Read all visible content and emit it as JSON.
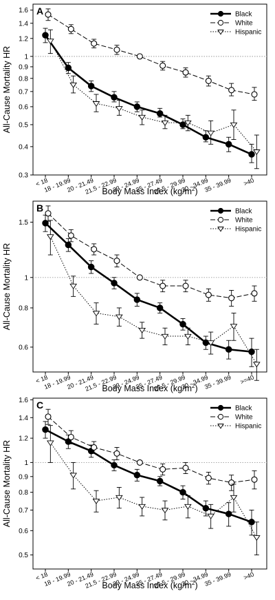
{
  "chart_data": [
    {
      "type": "line",
      "panel_label": "A",
      "ylabel": "All-Cause Mortality HR",
      "xlabel": "Body Mass Index (kg/m",
      "xlabel_sup": "2",
      "xlabel_close": ")",
      "yscale": "log",
      "ylim": [
        0.3,
        1.7
      ],
      "yticks": [
        0.3,
        0.4,
        0.5,
        0.6,
        0.7,
        0.8,
        0.9,
        1,
        1.2,
        1.4,
        1.6
      ],
      "ytick_labels": [
        "0.3",
        "0.4",
        "0.5",
        "0.6",
        "0.7",
        "0.8",
        "0.9",
        "1",
        "1.2",
        "1.4",
        "1.6"
      ],
      "reference_line": 1,
      "legend_position": "top-right",
      "categories": [
        "< 18",
        "18 - 19.99",
        "20 - 21.49",
        "21.5 - 22.99",
        "23 - 24.99",
        "25 - 27.49",
        "27.5 - 29.99",
        "30 - 34.99",
        "35 - 39.99",
        ">40"
      ],
      "category_labels": [
        "< 18",
        "18 - 19.99",
        "20 - 21.49",
        "21.5 - 22.99",
        "23 - 24.99",
        "25 - 27.49",
        "27.5 - 29.99",
        "30 - 34.99",
        "35 - 39.99",
        ">40"
      ],
      "series": [
        {
          "name": "Black",
          "style": "black",
          "x": [
            0,
            1,
            2,
            3,
            4,
            5,
            6,
            7,
            8,
            9
          ],
          "values": [
            1.24,
            0.89,
            0.74,
            0.66,
            0.6,
            0.56,
            0.5,
            0.44,
            0.41,
            0.37
          ],
          "lower": [
            1.15,
            0.84,
            0.7,
            0.63,
            0.57,
            0.54,
            0.48,
            0.42,
            0.38,
            0.34
          ],
          "upper": [
            1.33,
            0.94,
            0.78,
            0.7,
            0.63,
            0.59,
            0.53,
            0.47,
            0.44,
            0.41
          ]
        },
        {
          "name": "White",
          "style": "white",
          "x": [
            0.12,
            1.12,
            2.12,
            3.12,
            4.12,
            5.12,
            6.12,
            7.12,
            8.12,
            9.12
          ],
          "values": [
            1.53,
            1.32,
            1.14,
            1.07,
            1.0,
            0.91,
            0.85,
            0.78,
            0.71,
            0.68
          ],
          "lower": [
            1.44,
            1.26,
            1.09,
            1.02,
            1.0,
            0.87,
            0.81,
            0.74,
            0.67,
            0.64
          ],
          "upper": [
            1.62,
            1.38,
            1.19,
            1.12,
            1.0,
            0.95,
            0.89,
            0.82,
            0.76,
            0.73
          ]
        },
        {
          "name": "Hispanic",
          "style": "hispanic",
          "x": [
            0.22,
            1.22,
            2.22,
            3.22,
            4.22,
            5.22,
            6.22,
            7.22,
            8.22,
            9.22
          ],
          "values": [
            1.17,
            0.75,
            0.62,
            0.59,
            0.54,
            0.51,
            0.51,
            0.46,
            0.5,
            0.38
          ],
          "lower": [
            1.03,
            0.69,
            0.57,
            0.55,
            0.5,
            0.48,
            0.47,
            0.41,
            0.43,
            0.32
          ],
          "upper": [
            1.31,
            0.82,
            0.68,
            0.64,
            0.58,
            0.55,
            0.55,
            0.52,
            0.58,
            0.45
          ]
        }
      ]
    },
    {
      "type": "line",
      "panel_label": "B",
      "ylabel": "All-Cause Mortality HR",
      "xlabel": "Body Mass Index (kg/m",
      "xlabel_sup": "2",
      "xlabel_close": ")",
      "yscale": "log",
      "ylim": [
        0.5,
        1.75
      ],
      "yticks": [
        0.6,
        0.8,
        1,
        1.5
      ],
      "ytick_labels": [
        "0.6",
        "0.8",
        "1",
        "1.5"
      ],
      "reference_line": 1,
      "legend_position": "top-right",
      "categories": [
        "< 18",
        "18 - 19.99",
        "20 - 21.49",
        "21.5 - 22.99",
        "23 - 24.99",
        "25 - 27.49",
        "27.5 - 29.99",
        "30 - 34.99",
        "35 - 39.99",
        ">=40"
      ],
      "category_labels": [
        "< 18",
        "18 - 19.99",
        "20 - 21.49",
        "21.5 - 22.99",
        "23 - 24.99",
        "25 - 27.49",
        "27.5 - 29.99",
        "30 - 34.99",
        "35 - 39.99",
        ">=40"
      ],
      "series": [
        {
          "name": "Black",
          "style": "black",
          "x": [
            0,
            1,
            2,
            3,
            4,
            5,
            6,
            7,
            8,
            9
          ],
          "values": [
            1.49,
            1.27,
            1.08,
            0.96,
            0.85,
            0.8,
            0.71,
            0.62,
            0.59,
            0.58
          ],
          "lower": [
            1.4,
            1.21,
            1.03,
            0.92,
            0.81,
            0.77,
            0.68,
            0.59,
            0.55,
            0.52
          ],
          "upper": [
            1.58,
            1.33,
            1.13,
            1.0,
            0.89,
            0.83,
            0.74,
            0.65,
            0.63,
            0.64
          ]
        },
        {
          "name": "White",
          "style": "white",
          "x": [
            0.12,
            1.12,
            2.12,
            3.12,
            4.12,
            5.12,
            6.12,
            7.12,
            8.12,
            9.12
          ],
          "values": [
            1.6,
            1.36,
            1.23,
            1.13,
            1.0,
            0.94,
            0.94,
            0.88,
            0.86,
            0.89
          ],
          "lower": [
            1.51,
            1.3,
            1.18,
            1.08,
            1.0,
            0.9,
            0.9,
            0.84,
            0.81,
            0.84
          ],
          "upper": [
            1.69,
            1.42,
            1.28,
            1.18,
            1.0,
            0.98,
            0.98,
            0.92,
            0.91,
            0.94
          ]
        },
        {
          "name": "Hispanic",
          "style": "hispanic",
          "x": [
            0.22,
            1.22,
            2.22,
            3.22,
            4.22,
            5.22,
            6.22,
            7.22,
            8.22,
            9.22
          ],
          "values": [
            1.35,
            0.94,
            0.77,
            0.75,
            0.68,
            0.65,
            0.65,
            0.62,
            0.7,
            0.53
          ],
          "lower": [
            1.18,
            0.87,
            0.71,
            0.7,
            0.64,
            0.61,
            0.61,
            0.57,
            0.63,
            0.47
          ],
          "upper": [
            1.52,
            1.01,
            0.83,
            0.8,
            0.72,
            0.69,
            0.69,
            0.67,
            0.77,
            0.59
          ]
        }
      ]
    },
    {
      "type": "line",
      "panel_label": "C",
      "ylabel": "All-Cause Mortality HR",
      "xlabel": "Body Mass Index (kg/m",
      "xlabel_sup": "2",
      "xlabel_close": ")",
      "yscale": "log",
      "ylim": [
        0.45,
        1.62
      ],
      "yticks": [
        0.5,
        0.6,
        0.7,
        0.8,
        0.9,
        1,
        1.2,
        1.4,
        1.6
      ],
      "ytick_labels": [
        "0.5",
        "0.6",
        "0.7",
        "0.8",
        "0.9",
        "1",
        "1.2",
        "1.4",
        "1.6"
      ],
      "reference_line": 1,
      "legend_position": "top-right",
      "categories": [
        "< 18",
        "18 - 19.99",
        "20 - 21.49",
        "21.5 - 22.99",
        "23 - 24.99",
        "25 - 27.49",
        "27.5 - 29.99",
        "30 - 34.99",
        "35 - 39.99",
        ">40"
      ],
      "category_labels": [
        "< 18",
        "18 - 19.99",
        "20 - 21.49",
        "21.5 - 22.99",
        "23 - 24.99",
        "25 - 27.49",
        "27.5 - 29.99",
        "30 - 34.99",
        "35 - 39.99",
        ">40"
      ],
      "series": [
        {
          "name": "Black",
          "style": "black",
          "x": [
            0,
            1,
            2,
            3,
            4,
            5,
            6,
            7,
            8,
            9
          ],
          "values": [
            1.28,
            1.17,
            1.09,
            0.98,
            0.91,
            0.87,
            0.8,
            0.71,
            0.68,
            0.64
          ],
          "lower": [
            1.2,
            1.11,
            1.04,
            0.94,
            0.87,
            0.84,
            0.76,
            0.67,
            0.62,
            0.58
          ],
          "upper": [
            1.36,
            1.23,
            1.14,
            1.02,
            0.95,
            0.9,
            0.84,
            0.75,
            0.74,
            0.7
          ]
        },
        {
          "name": "White",
          "style": "white",
          "x": [
            0.12,
            1.12,
            2.12,
            3.12,
            4.12,
            5.12,
            6.12,
            7.12,
            8.12,
            9.12
          ],
          "values": [
            1.41,
            1.21,
            1.12,
            1.07,
            1.0,
            0.95,
            0.96,
            0.89,
            0.86,
            0.88
          ],
          "lower": [
            1.33,
            1.15,
            1.07,
            1.02,
            1.0,
            0.91,
            0.92,
            0.85,
            0.81,
            0.82
          ],
          "upper": [
            1.49,
            1.27,
            1.17,
            1.12,
            1.0,
            0.99,
            1.0,
            0.93,
            0.91,
            0.94
          ]
        },
        {
          "name": "Hispanic",
          "style": "hispanic",
          "x": [
            0.22,
            1.22,
            2.22,
            3.22,
            4.22,
            5.22,
            6.22,
            7.22,
            8.22,
            9.22
          ],
          "values": [
            1.16,
            0.91,
            0.75,
            0.77,
            0.72,
            0.7,
            0.72,
            0.67,
            0.77,
            0.57
          ],
          "lower": [
            1.0,
            0.82,
            0.69,
            0.71,
            0.67,
            0.65,
            0.66,
            0.61,
            0.69,
            0.5
          ],
          "upper": [
            1.32,
            1.0,
            0.81,
            0.83,
            0.77,
            0.75,
            0.78,
            0.73,
            0.85,
            0.64
          ]
        }
      ]
    }
  ]
}
